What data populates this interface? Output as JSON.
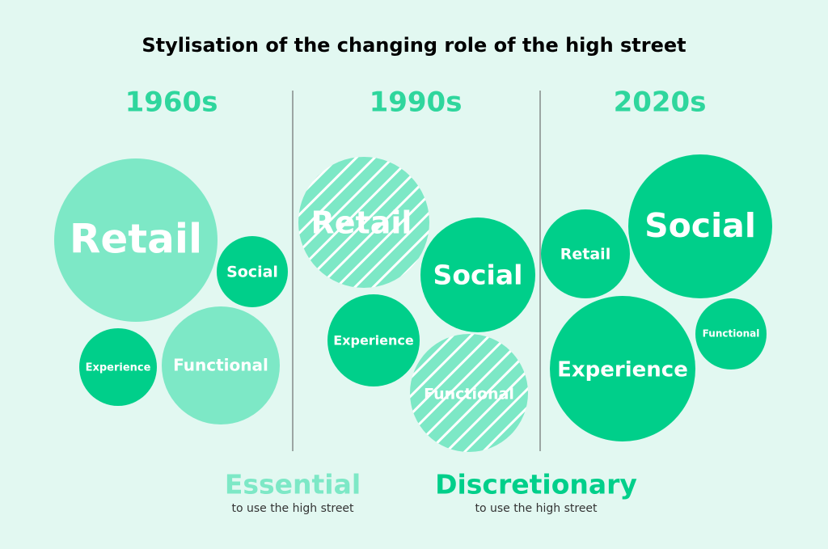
{
  "title": "Stylisation of the changing role of the high street",
  "periods": [
    {
      "label": "1960s",
      "circles": [
        "Retail",
        "Social",
        "Experience",
        "Functional"
      ]
    },
    {
      "label": "1990s",
      "circles": [
        "Retail",
        "Social",
        "Experience",
        "Functional"
      ]
    },
    {
      "label": "2020s",
      "circles": [
        "Retail",
        "Social",
        "Experience",
        "Functional"
      ]
    }
  ],
  "legend": [
    {
      "label": "Essential",
      "note": "to use the high street"
    },
    {
      "label": "Discretionary",
      "note": "to use the high street"
    }
  ]
}
